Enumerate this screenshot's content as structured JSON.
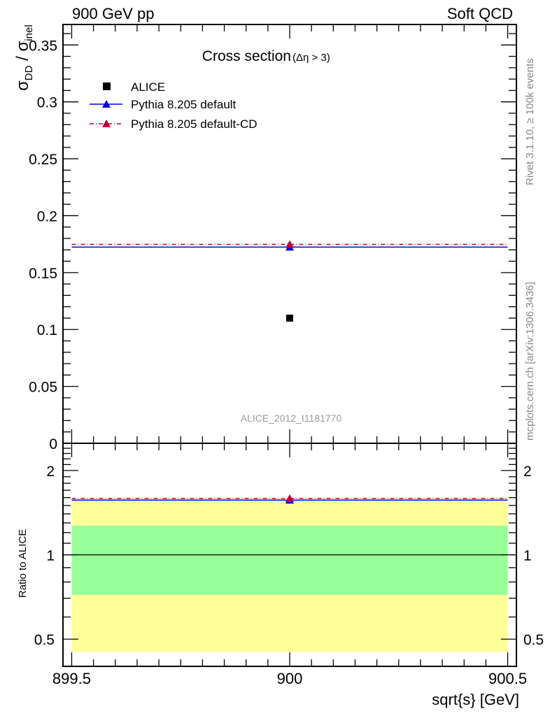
{
  "header": {
    "left": "900 GeV pp",
    "right": "Soft QCD"
  },
  "side_labels": {
    "rivet": "Rivet 3.1.10, ≥ 100k events",
    "mcplots": "mcplots.cern.ch [arXiv:1306.3436]"
  },
  "colors": {
    "alice": "#000000",
    "default": "#0000dd",
    "cd": "#bb0033",
    "band1": "#99ff99",
    "band2": "#ffff99"
  },
  "chart_data": [
    {
      "type": "scatter",
      "title": "Cross section",
      "title_suffix": "(Δη > 3)",
      "ylabel_main": "σ",
      "ylabel_sub1": "DD",
      "ylabel_sep": " / σ",
      "ylabel_sub2": "inel",
      "watermark": "ALICE_2012_I1181770",
      "xlim": [
        899.48,
        900.52
      ],
      "ylim": [
        0,
        0.368
      ],
      "yticks": [
        "0",
        "0.05",
        "0.1",
        "0.15",
        "0.2",
        "0.25",
        "0.3",
        "0.35"
      ],
      "ytick_values": [
        0,
        0.05,
        0.1,
        0.15,
        0.2,
        0.25,
        0.3,
        0.35
      ],
      "legend_position": "top-left",
      "series": [
        {
          "name": "ALICE",
          "x": [
            900
          ],
          "y": [
            0.11
          ],
          "marker": "square"
        },
        {
          "name": "Pythia 8.205 default",
          "x": [
            900
          ],
          "y": [
            0.1724
          ],
          "xerr": [
            0.5
          ],
          "marker": "triangle"
        },
        {
          "name": "Pythia 8.205 default-CD",
          "x": [
            900
          ],
          "y": [
            0.1748
          ],
          "xerr": [
            0.5
          ],
          "marker": "triangle"
        }
      ]
    },
    {
      "type": "line",
      "ylabel": "Ratio to ALICE",
      "xlabel": "sqrt{s} [GeV]",
      "yscale": "log",
      "xlim": [
        899.48,
        900.52
      ],
      "ylim": [
        0.4,
        2.5
      ],
      "xticks": [
        "899.5",
        "900",
        "900.5"
      ],
      "xtick_values": [
        899.5,
        900,
        900.5
      ],
      "yticks": [
        "0.5",
        "1",
        "2"
      ],
      "ytick_values": [
        0.5,
        1,
        2
      ],
      "bands": [
        {
          "name": "total-uncertainty",
          "low": 0.45,
          "high": 1.55
        },
        {
          "name": "stat-uncertainty",
          "low": 0.72,
          "high": 1.27
        }
      ],
      "series": [
        {
          "name": "Pythia 8.205 default",
          "x": [
            900
          ],
          "y": [
            1.568
          ]
        },
        {
          "name": "Pythia 8.205 default-CD",
          "x": [
            900
          ],
          "y": [
            1.589
          ]
        }
      ]
    }
  ]
}
